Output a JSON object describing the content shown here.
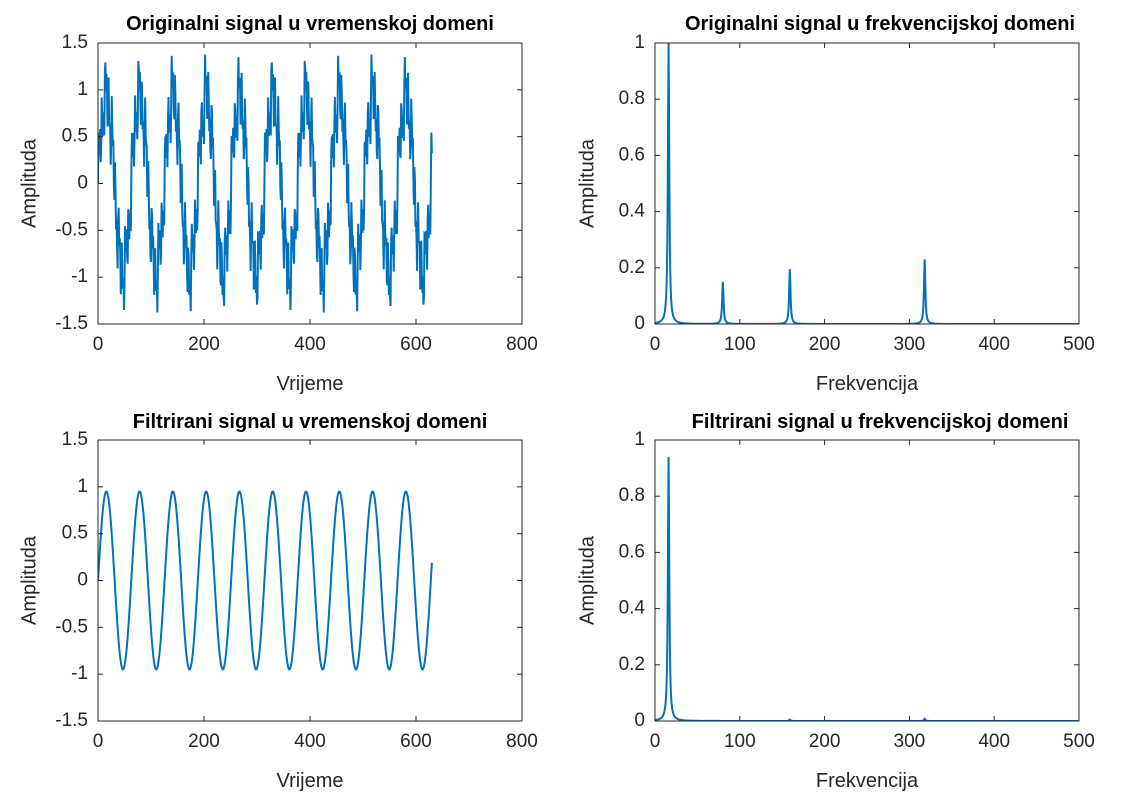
{
  "series_color": "#0072BD",
  "chart_data": [
    {
      "type": "line",
      "title": "Originalni signal u vremenskoj domeni",
      "xlabel": "Vrijeme",
      "ylabel": "Amplituda",
      "xlim": [
        0,
        800
      ],
      "ylim": [
        -1.5,
        1.5
      ],
      "xticks": [
        0,
        200,
        400,
        600,
        800
      ],
      "yticks": [
        -1.5,
        -1,
        -0.5,
        0,
        0.5,
        1,
        1.5
      ],
      "ytick_labels": [
        "-1.5",
        "-1",
        "-0.5",
        "0",
        "0.5",
        "1",
        "1.5"
      ],
      "grid": false,
      "signal": {
        "kind": "noisy_sine",
        "x_end": 630,
        "period": 62.8,
        "amplitude": 0.95,
        "samples": 630,
        "noise": [
          {
            "amplitude": 0.15,
            "period": 12.56
          },
          {
            "amplitude": 0.2,
            "period": 6.28
          },
          {
            "amplitude": 0.23,
            "period": 3.14
          }
        ]
      }
    },
    {
      "type": "line",
      "title": "Originalni signal u frekvencijskoj domeni",
      "xlabel": "Frekvencija",
      "ylabel": "Amplituda",
      "xlim": [
        0,
        500
      ],
      "ylim": [
        0,
        1
      ],
      "xticks": [
        0,
        100,
        200,
        300,
        400,
        500
      ],
      "yticks": [
        0,
        0.2,
        0.4,
        0.6,
        0.8,
        1
      ],
      "ytick_labels": [
        "0",
        "0.2",
        "0.4",
        "0.6",
        "0.8",
        "1"
      ],
      "grid": false,
      "peaks": [
        {
          "frequency": 16,
          "amplitude": 1.0
        },
        {
          "frequency": 80,
          "amplitude": 0.15
        },
        {
          "frequency": 159,
          "amplitude": 0.195
        },
        {
          "frequency": 318,
          "amplitude": 0.23
        }
      ]
    },
    {
      "type": "line",
      "title": "Filtrirani signal u vremenskoj domeni",
      "xlabel": "Vrijeme",
      "ylabel": "Amplituda",
      "xlim": [
        0,
        800
      ],
      "ylim": [
        -1.5,
        1.5
      ],
      "xticks": [
        0,
        200,
        400,
        600,
        800
      ],
      "yticks": [
        -1.5,
        -1,
        -0.5,
        0,
        0.5,
        1,
        1.5
      ],
      "ytick_labels": [
        "-1.5",
        "-1",
        "-0.5",
        "0",
        "0.5",
        "1",
        "1.5"
      ],
      "grid": false,
      "signal": {
        "kind": "sine",
        "x_end": 630,
        "period": 62.8,
        "amplitude": 0.95,
        "samples": 630,
        "noise": []
      }
    },
    {
      "type": "line",
      "title": "Filtrirani signal u frekvencijskoj domeni",
      "xlabel": "Frekvencija",
      "ylabel": "Amplituda",
      "xlim": [
        0,
        500
      ],
      "ylim": [
        0,
        1
      ],
      "xticks": [
        0,
        100,
        200,
        300,
        400,
        500
      ],
      "yticks": [
        0,
        0.2,
        0.4,
        0.6,
        0.8,
        1
      ],
      "ytick_labels": [
        "0",
        "0.2",
        "0.4",
        "0.6",
        "0.8",
        "1"
      ],
      "grid": false,
      "peaks": [
        {
          "frequency": 16,
          "amplitude": 0.94
        },
        {
          "frequency": 159,
          "amplitude": 0.005
        },
        {
          "frequency": 318,
          "amplitude": 0.008
        }
      ]
    }
  ]
}
